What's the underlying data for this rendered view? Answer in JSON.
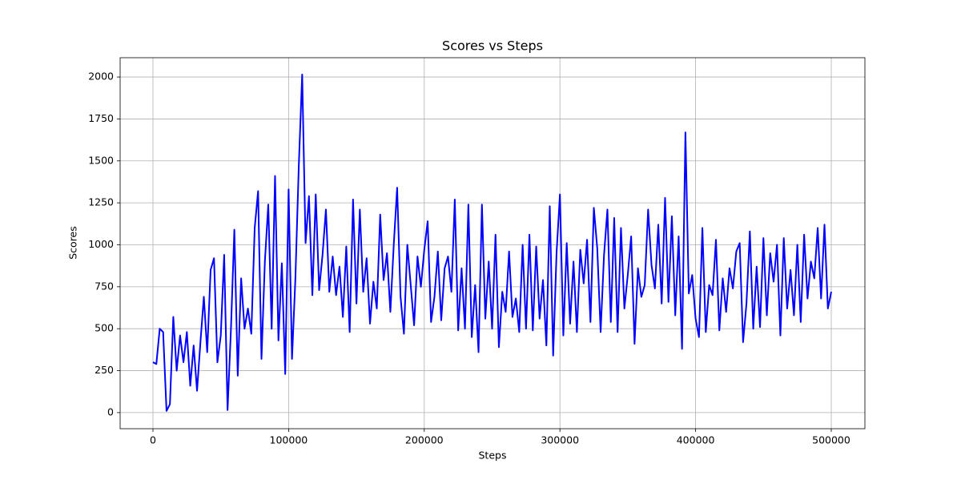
{
  "chart_data": {
    "type": "line",
    "title": "Scores vs Steps",
    "x_label": "Steps",
    "y_label": "Scores",
    "color": "#0000ff",
    "grid": true,
    "xlim": [
      -24200,
      524800
    ],
    "ylim": [
      -96,
      2115
    ],
    "xticks": [
      0,
      100000,
      200000,
      300000,
      400000,
      500000
    ],
    "yticks": [
      0,
      250,
      500,
      750,
      1000,
      1250,
      1500,
      1750,
      2000
    ],
    "x": [
      0,
      2500,
      5000,
      7500,
      10000,
      12500,
      15000,
      17500,
      20000,
      22500,
      25000,
      27500,
      30000,
      32500,
      35000,
      37500,
      40000,
      42500,
      45000,
      47500,
      50000,
      52500,
      55000,
      57500,
      60000,
      62500,
      65000,
      67500,
      70000,
      72500,
      75000,
      77500,
      80000,
      82500,
      85000,
      87500,
      90000,
      92500,
      95000,
      97500,
      100000,
      102500,
      105000,
      107500,
      110000,
      112500,
      115000,
      117500,
      120000,
      122500,
      125000,
      127500,
      130000,
      132500,
      135000,
      137500,
      140000,
      142500,
      145000,
      147500,
      150000,
      152500,
      155000,
      157500,
      160000,
      162500,
      165000,
      167500,
      170000,
      172500,
      175000,
      177500,
      180000,
      182500,
      185000,
      187500,
      190000,
      192500,
      195000,
      197500,
      200000,
      202500,
      205000,
      207500,
      210000,
      212500,
      215000,
      217500,
      220000,
      222500,
      225000,
      227500,
      230000,
      232500,
      235000,
      237500,
      240000,
      242500,
      245000,
      247500,
      250000,
      252500,
      255000,
      257500,
      260000,
      262500,
      265000,
      267500,
      270000,
      272500,
      275000,
      277500,
      280000,
      282500,
      285000,
      287500,
      290000,
      292500,
      295000,
      297500,
      300000,
      302500,
      305000,
      307500,
      310000,
      312500,
      315000,
      317500,
      320000,
      322500,
      325000,
      327500,
      330000,
      332500,
      335000,
      337500,
      340000,
      342500,
      345000,
      347500,
      350000,
      352500,
      355000,
      357500,
      360000,
      362500,
      365000,
      367500,
      370000,
      372500,
      375000,
      377500,
      380000,
      382500,
      385000,
      387500,
      390000,
      392500,
      395000,
      397500,
      400000,
      402500,
      405000,
      407500,
      410000,
      412500,
      415000,
      417500,
      420000,
      422500,
      425000,
      427500,
      430000,
      432500,
      435000,
      437500,
      440000,
      442500,
      445000,
      447500,
      450000,
      452500,
      455000,
      457500,
      460000,
      462500,
      465000,
      467500,
      470000,
      472500,
      475000,
      477500,
      480000,
      482500,
      485000,
      487500,
      490000,
      492500,
      495000,
      497500,
      500000
    ],
    "values": [
      300,
      290,
      500,
      480,
      10,
      50,
      570,
      250,
      460,
      300,
      480,
      160,
      400,
      130,
      420,
      690,
      360,
      850,
      920,
      300,
      460,
      940,
      15,
      500,
      1090,
      220,
      800,
      500,
      620,
      470,
      1100,
      1320,
      320,
      900,
      1240,
      500,
      1410,
      430,
      890,
      230,
      1330,
      320,
      800,
      1470,
      2015,
      1010,
      1290,
      700,
      1300,
      730,
      940,
      1210,
      720,
      930,
      700,
      870,
      570,
      990,
      480,
      1270,
      650,
      1210,
      720,
      920,
      530,
      780,
      620,
      1180,
      790,
      950,
      600,
      1000,
      1340,
      690,
      470,
      1000,
      760,
      520,
      930,
      750,
      970,
      1140,
      540,
      690,
      960,
      550,
      860,
      930,
      720,
      1270,
      490,
      860,
      500,
      1240,
      450,
      760,
      360,
      1240,
      560,
      900,
      500,
      1060,
      390,
      720,
      600,
      960,
      570,
      680,
      480,
      1000,
      500,
      1060,
      490,
      990,
      560,
      790,
      400,
      1230,
      340,
      950,
      1300,
      460,
      1010,
      530,
      900,
      480,
      970,
      770,
      1030,
      540,
      1220,
      980,
      480,
      940,
      1210,
      540,
      1160,
      480,
      1100,
      620,
      820,
      1050,
      410,
      860,
      690,
      760,
      1210,
      880,
      740,
      1120,
      650,
      1280,
      660,
      1170,
      580,
      1050,
      380,
      1670,
      710,
      820,
      560,
      450,
      1100,
      480,
      760,
      700,
      1030,
      490,
      800,
      600,
      860,
      740,
      960,
      1010,
      420,
      650,
      1080,
      500,
      870,
      510,
      1040,
      580,
      950,
      780,
      1000,
      460,
      1040,
      620,
      850,
      580,
      1000,
      540,
      1060,
      680,
      900,
      800,
      1100,
      680,
      1120,
      620,
      720
    ]
  }
}
